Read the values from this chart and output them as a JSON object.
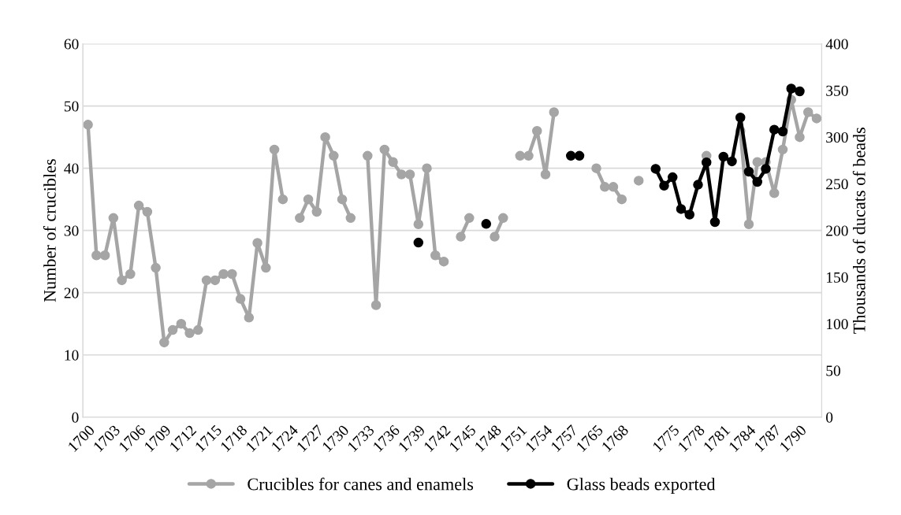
{
  "chart_data": {
    "type": "line",
    "ylabel": "Number of crucibles",
    "y2label": "Thousands of ducats of beads",
    "categories": [
      "1700",
      null,
      null,
      "1703",
      null,
      null,
      "1706",
      null,
      null,
      "1709",
      null,
      null,
      "1712",
      null,
      null,
      "1715",
      null,
      null,
      "1718",
      null,
      null,
      "1721",
      null,
      null,
      "1724",
      null,
      null,
      "1727",
      null,
      null,
      "1730",
      null,
      null,
      "1733",
      null,
      null,
      "1736",
      null,
      null,
      "1739",
      null,
      null,
      "1742",
      null,
      null,
      "1745",
      null,
      null,
      "1748",
      null,
      null,
      "1751",
      null,
      null,
      "1754",
      null,
      null,
      "1757",
      null,
      null,
      "1765",
      null,
      null,
      "1768",
      null,
      null,
      null,
      null,
      null,
      "1775",
      null,
      null,
      "1778",
      null,
      null,
      "1781",
      null,
      null,
      "1784",
      null,
      null,
      "1787",
      null,
      null,
      "1790",
      null,
      null
    ],
    "series": [
      {
        "name": "Crucibles for canes and enamels",
        "color": "#a5a5a5",
        "values": [
          47,
          26,
          26,
          32,
          22,
          23,
          34,
          33,
          24,
          12,
          14,
          15,
          13.5,
          14,
          22,
          22,
          23,
          23,
          19,
          16,
          28,
          24,
          43,
          35,
          null,
          32,
          35,
          33,
          45,
          42,
          35,
          32,
          null,
          42,
          18,
          43,
          41,
          39,
          39,
          31,
          40,
          26,
          25,
          null,
          29,
          32,
          null,
          null,
          29,
          32,
          null,
          42,
          42,
          46,
          39,
          49,
          null,
          null,
          null,
          null,
          40,
          37,
          37,
          35,
          null,
          38,
          null,
          null,
          null,
          null,
          null,
          null,
          null,
          42,
          null,
          null,
          null,
          46,
          31,
          41,
          41,
          36,
          43,
          51,
          45,
          49,
          48
        ]
      },
      {
        "name": "Glass beads exported",
        "color": "#000000",
        "axis": "y2",
        "values": [
          null,
          null,
          null,
          null,
          null,
          null,
          null,
          null,
          null,
          null,
          null,
          null,
          null,
          null,
          null,
          null,
          null,
          null,
          null,
          null,
          null,
          null,
          null,
          null,
          null,
          null,
          null,
          null,
          null,
          null,
          null,
          null,
          null,
          null,
          null,
          null,
          null,
          null,
          null,
          187,
          null,
          null,
          null,
          null,
          null,
          null,
          null,
          207,
          null,
          null,
          null,
          null,
          null,
          null,
          null,
          null,
          null,
          280,
          280,
          null,
          null,
          null,
          null,
          null,
          null,
          null,
          null,
          266,
          248,
          257,
          223,
          217,
          249,
          273,
          209,
          279,
          274,
          321,
          263,
          252,
          266,
          308,
          306,
          352,
          349,
          null,
          null
        ]
      }
    ],
    "ylim": [
      0,
      60
    ],
    "yticks": [
      0,
      10,
      20,
      30,
      40,
      50,
      60
    ],
    "y2lim": [
      0,
      400
    ],
    "y2ticks": [
      0,
      50,
      100,
      150,
      200,
      250,
      300,
      350,
      400
    ],
    "grid": "y",
    "legend": "bottom",
    "marker": "circle",
    "line_style": "solid"
  }
}
